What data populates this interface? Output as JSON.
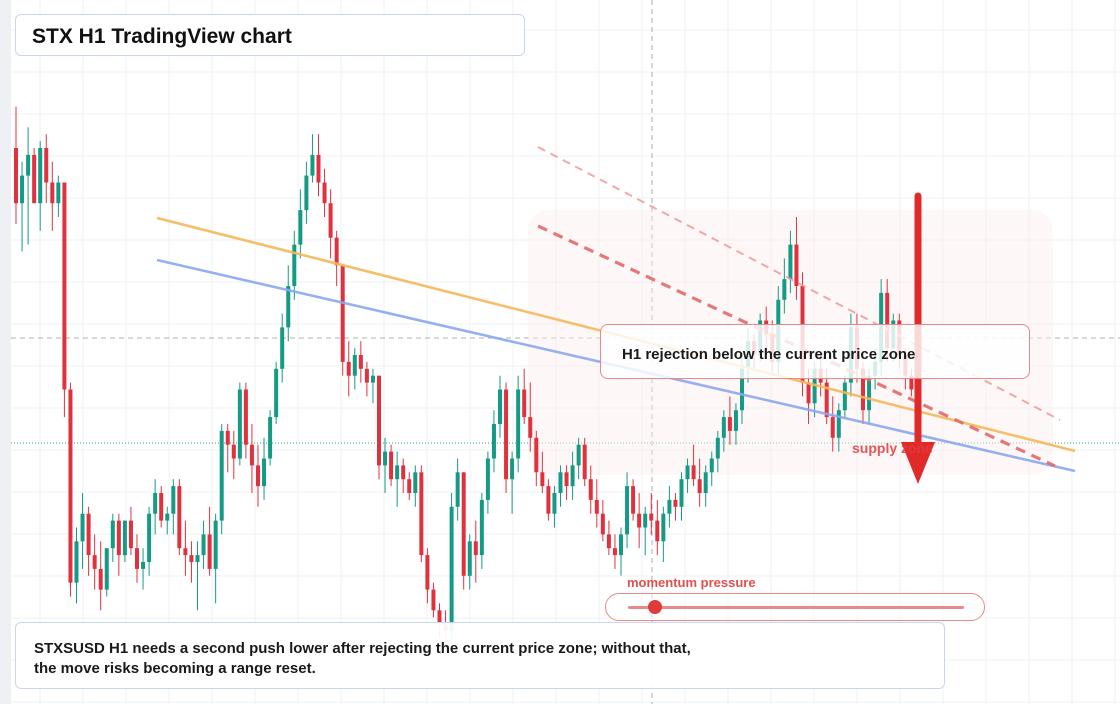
{
  "title": "STX H1 TradingView chart",
  "callout": "H1 rejection below the current price zone",
  "caption_line1": "STXSUSD H1 needs a second push lower after rejecting the current price zone; without that,",
  "caption_line2": "the move risks becoming a range reset.",
  "zone_label": "supply zone",
  "momentum_label": "momentum pressure",
  "momentum_value": 0.08,
  "colors": {
    "up": "#159a86",
    "down": "#e0323e",
    "arrow": "#e02a2a",
    "trend_orange": "#f5b85a",
    "trend_blue": "#8aa8f0",
    "dashed_red": "#e26b6b",
    "dashed_red_light": "#ee9a9a",
    "crosshair": "#444444",
    "price_line": "#159a86"
  },
  "chart_data": {
    "type": "candlestick",
    "price_range": [
      0,
      100
    ],
    "candles": [
      [
        80,
        86,
        69,
        72
      ],
      [
        72,
        78,
        65,
        76
      ],
      [
        76,
        83,
        66,
        79
      ],
      [
        79,
        80,
        72,
        72
      ],
      [
        72,
        81,
        68,
        80
      ],
      [
        80,
        82,
        72,
        75
      ],
      [
        75,
        78,
        68,
        72
      ],
      [
        72,
        76,
        70,
        75
      ],
      [
        75,
        75,
        41,
        45
      ],
      [
        45,
        46,
        15,
        17
      ],
      [
        17,
        25,
        14,
        23
      ],
      [
        23,
        30,
        19,
        27
      ],
      [
        27,
        28,
        18,
        21
      ],
      [
        21,
        24,
        16,
        19
      ],
      [
        19,
        23,
        13,
        16
      ],
      [
        16,
        22,
        15,
        22
      ],
      [
        22,
        27,
        20,
        26
      ],
      [
        26,
        27,
        18,
        21
      ],
      [
        21,
        26,
        20,
        26
      ],
      [
        26,
        28,
        21,
        22
      ],
      [
        22,
        24,
        17,
        19
      ],
      [
        19,
        22,
        16,
        20
      ],
      [
        20,
        28,
        18,
        27
      ],
      [
        27,
        32,
        24,
        30
      ],
      [
        30,
        31,
        25,
        26
      ],
      [
        26,
        28,
        24,
        27
      ],
      [
        27,
        32,
        24,
        31
      ],
      [
        31,
        32,
        21,
        22
      ],
      [
        22,
        26,
        18,
        21
      ],
      [
        21,
        23,
        17,
        20
      ],
      [
        20,
        23,
        13,
        21
      ],
      [
        21,
        26,
        19,
        24
      ],
      [
        24,
        28,
        18,
        19
      ],
      [
        19,
        27,
        14,
        26
      ],
      [
        26,
        40,
        24,
        39
      ],
      [
        39,
        40,
        33,
        37
      ],
      [
        37,
        39,
        32,
        35
      ],
      [
        35,
        46,
        34,
        45
      ],
      [
        45,
        46,
        35,
        37
      ],
      [
        37,
        40,
        30,
        34
      ],
      [
        34,
        37,
        28,
        31
      ],
      [
        31,
        38,
        29,
        35
      ],
      [
        35,
        42,
        34,
        41
      ],
      [
        41,
        49,
        40,
        48
      ],
      [
        48,
        56,
        46,
        54
      ],
      [
        54,
        63,
        52,
        60
      ],
      [
        60,
        68,
        58,
        66
      ],
      [
        66,
        74,
        64,
        71
      ],
      [
        71,
        78,
        69,
        76
      ],
      [
        76,
        82,
        75,
        79
      ],
      [
        79,
        82,
        73,
        75
      ],
      [
        75,
        77,
        70,
        72
      ],
      [
        72,
        74,
        64,
        67
      ],
      [
        67,
        68,
        60,
        63
      ],
      [
        63,
        63,
        47,
        49
      ],
      [
        49,
        52,
        44,
        47
      ],
      [
        47,
        51,
        45,
        50
      ],
      [
        50,
        52,
        46,
        48
      ],
      [
        48,
        49,
        44,
        46
      ],
      [
        46,
        48,
        43,
        47
      ],
      [
        47,
        47,
        32,
        34
      ],
      [
        34,
        38,
        30,
        36
      ],
      [
        36,
        37,
        31,
        32
      ],
      [
        32,
        36,
        28,
        34
      ],
      [
        34,
        35,
        30,
        32
      ],
      [
        32,
        33,
        29,
        30
      ],
      [
        30,
        34,
        28,
        33
      ],
      [
        33,
        34,
        20,
        21
      ],
      [
        21,
        22,
        14,
        16
      ],
      [
        16,
        17,
        12,
        13
      ],
      [
        13,
        14,
        9,
        11
      ],
      [
        11,
        13,
        6,
        10
      ],
      [
        10,
        30,
        8,
        28
      ],
      [
        28,
        35,
        26,
        33
      ],
      [
        33,
        33,
        16,
        18
      ],
      [
        18,
        24,
        16,
        23
      ],
      [
        23,
        26,
        17,
        21
      ],
      [
        21,
        30,
        19,
        29
      ],
      [
        29,
        36,
        27,
        35
      ],
      [
        35,
        42,
        33,
        40
      ],
      [
        40,
        47,
        38,
        45
      ],
      [
        45,
        46,
        30,
        32
      ],
      [
        32,
        36,
        27,
        35
      ],
      [
        35,
        47,
        33,
        45
      ],
      [
        45,
        48,
        40,
        41
      ],
      [
        41,
        46,
        36,
        38
      ],
      [
        38,
        39,
        31,
        33
      ],
      [
        33,
        36,
        30,
        31
      ],
      [
        31,
        32,
        26,
        27
      ],
      [
        27,
        31,
        25,
        30
      ],
      [
        30,
        34,
        28,
        33
      ],
      [
        33,
        34,
        29,
        31
      ],
      [
        31,
        36,
        29,
        34
      ],
      [
        34,
        38,
        32,
        37
      ],
      [
        37,
        38,
        31,
        32
      ],
      [
        32,
        34,
        27,
        29
      ],
      [
        29,
        32,
        25,
        27
      ],
      [
        27,
        29,
        23,
        24
      ],
      [
        24,
        26,
        21,
        22
      ],
      [
        22,
        24,
        19,
        21
      ],
      [
        21,
        25,
        18,
        24
      ],
      [
        24,
        33,
        22,
        31
      ],
      [
        31,
        32,
        26,
        27
      ],
      [
        27,
        30,
        22,
        25
      ],
      [
        25,
        28,
        21,
        27
      ],
      [
        27,
        30,
        24,
        26
      ],
      [
        26,
        29,
        21,
        23
      ],
      [
        23,
        28,
        20,
        27
      ],
      [
        27,
        31,
        25,
        29
      ],
      [
        29,
        30,
        26,
        28
      ],
      [
        28,
        33,
        26,
        32
      ],
      [
        32,
        35,
        30,
        34
      ],
      [
        34,
        37,
        31,
        32
      ],
      [
        32,
        35,
        28,
        30
      ],
      [
        30,
        34,
        28,
        33
      ],
      [
        33,
        36,
        31,
        35
      ],
      [
        35,
        39,
        33,
        38
      ],
      [
        38,
        42,
        36,
        41
      ],
      [
        41,
        44,
        37,
        39
      ],
      [
        39,
        43,
        37,
        42
      ],
      [
        42,
        50,
        40,
        48
      ],
      [
        48,
        54,
        46,
        52
      ],
      [
        52,
        53,
        48,
        50
      ],
      [
        50,
        56,
        49,
        55
      ],
      [
        55,
        57,
        51,
        53
      ],
      [
        53,
        55,
        47,
        49
      ],
      [
        49,
        60,
        47,
        58
      ],
      [
        58,
        64,
        56,
        61
      ],
      [
        61,
        68,
        59,
        66
      ],
      [
        66,
        70,
        58,
        60
      ],
      [
        60,
        62,
        44,
        46
      ],
      [
        46,
        48,
        40,
        43
      ],
      [
        43,
        49,
        41,
        48
      ],
      [
        48,
        50,
        44,
        46
      ],
      [
        46,
        48,
        40,
        41
      ],
      [
        41,
        44,
        36,
        38
      ],
      [
        38,
        43,
        36,
        42
      ],
      [
        42,
        47,
        41,
        46
      ],
      [
        46,
        56,
        44,
        54
      ],
      [
        54,
        56,
        46,
        48
      ],
      [
        48,
        49,
        40,
        42
      ],
      [
        42,
        48,
        40,
        47
      ],
      [
        47,
        51,
        45,
        49
      ],
      [
        49,
        61,
        47,
        59
      ],
      [
        59,
        61,
        49,
        51
      ],
      [
        51,
        56,
        49,
        55
      ],
      [
        55,
        56,
        48,
        50
      ],
      [
        50,
        51,
        45,
        47
      ],
      [
        47,
        48,
        44,
        45
      ],
      [
        45,
        46,
        41,
        42
      ]
    ]
  }
}
